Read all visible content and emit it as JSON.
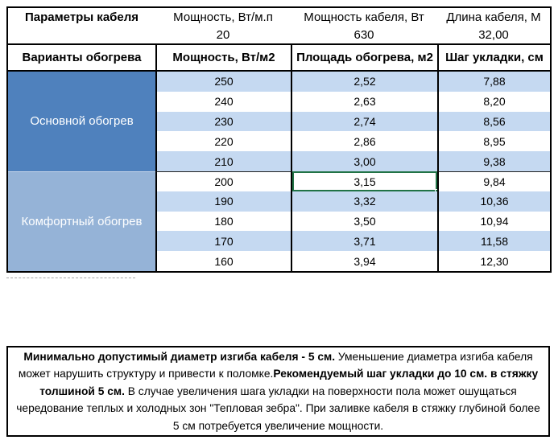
{
  "colors": {
    "group_main_bg": "#4f81bd",
    "group_comfort_bg": "#95b3d7",
    "band_row_bg": "#c5d9f1",
    "selection_border": "#217346",
    "grid_border": "#000000"
  },
  "cable_params": {
    "title": "Параметры кабеля",
    "columns": [
      "Мощность, Вт/м.п",
      "Мощность кабеля, Вт",
      "Длина кабеля, М"
    ],
    "values": [
      "20",
      "630",
      "32,00"
    ]
  },
  "heating": {
    "header": [
      "Варианты обогрева",
      "Мощность, Вт/м2",
      "Площадь обогрева, м2",
      "Шаг укладки, см"
    ],
    "groups": [
      {
        "label": "Основной обогрев",
        "rows": [
          [
            "250",
            "2,52",
            "7,88"
          ],
          [
            "240",
            "2,63",
            "8,20"
          ],
          [
            "230",
            "2,74",
            "8,56"
          ],
          [
            "220",
            "2,86",
            "8,95"
          ],
          [
            "210",
            "3,00",
            "9,38"
          ]
        ]
      },
      {
        "label": "Комфортный обогрев",
        "rows": [
          [
            "200",
            "3,15",
            "9,84"
          ],
          [
            "190",
            "3,32",
            "10,36"
          ],
          [
            "180",
            "3,50",
            "10,94"
          ],
          [
            "170",
            "3,71",
            "11,58"
          ],
          [
            "160",
            "3,94",
            "12,30"
          ]
        ]
      }
    ],
    "selected_cell": {
      "value": "3,15",
      "column": "Площадь обогрева, м2",
      "row_power": "200"
    }
  },
  "note": {
    "bold1": "Минимально допустимый диаметр изгиба кабеля - 5 см.",
    "text1": "  Уменьшение диаметра изгиба кабеля может нарушить структуру и привести к поломке.",
    "bold2": "Рекомендуемый шаг укладки до 10 см. в стяжку толшиной 5 см.",
    "text2": " В  случае увеличения шага укладки на поверхности пола может ошущаться чередование теплых и холодных зон \"Тепловая зебра\". При заливке кабеля в стяжку глубиной более 5 см потребуется увеличение мощности."
  }
}
